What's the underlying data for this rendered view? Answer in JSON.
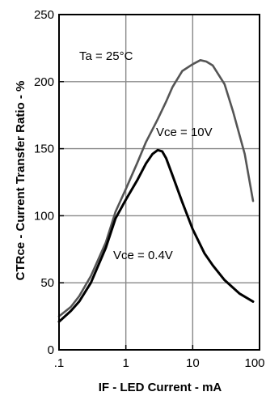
{
  "chart_data": {
    "type": "line",
    "xscale": "log",
    "xlim": [
      0.1,
      100
    ],
    "ylim": [
      0,
      250
    ],
    "grid": true,
    "xlabel": "IF - LED Current - mA",
    "ylabel": "CTRce - Current Transfer Ratio - %",
    "x_tick_labels": [
      ".1",
      "1",
      "10",
      "100"
    ],
    "y_tick_labels": [
      "0",
      "50",
      "100",
      "150",
      "200",
      "250"
    ],
    "x_ticks": [
      0.1,
      1,
      10,
      100
    ],
    "y_ticks": [
      0,
      50,
      100,
      150,
      200,
      250
    ],
    "annotations": {
      "ambient": "Ta = 25°C",
      "series_high": "Vce = 10V",
      "series_low": "Vce = 0.4V"
    },
    "series": [
      {
        "name": "Vce = 10V",
        "color": "#555555",
        "x": [
          0.1,
          0.15,
          0.2,
          0.3,
          0.5,
          0.7,
          1,
          1.5,
          2,
          3,
          4,
          5,
          7,
          10,
          13,
          16,
          20,
          30,
          40,
          60,
          80
        ],
        "y": [
          25,
          32,
          40,
          55,
          80,
          103,
          120,
          140,
          155,
          172,
          185,
          196,
          208,
          213,
          216,
          215,
          212,
          198,
          178,
          146,
          111
        ]
      },
      {
        "name": "Vce = 0.4V",
        "color": "#000000",
        "x": [
          0.1,
          0.15,
          0.2,
          0.3,
          0.5,
          0.7,
          1,
          1.5,
          2,
          2.5,
          3,
          3.5,
          4,
          5,
          7,
          10,
          15,
          20,
          30,
          50,
          80
        ],
        "y": [
          21,
          29,
          36,
          50,
          76,
          98,
          112,
          127,
          139,
          146,
          149,
          148,
          143,
          130,
          110,
          90,
          72,
          63,
          52,
          42,
          36
        ]
      }
    ]
  }
}
